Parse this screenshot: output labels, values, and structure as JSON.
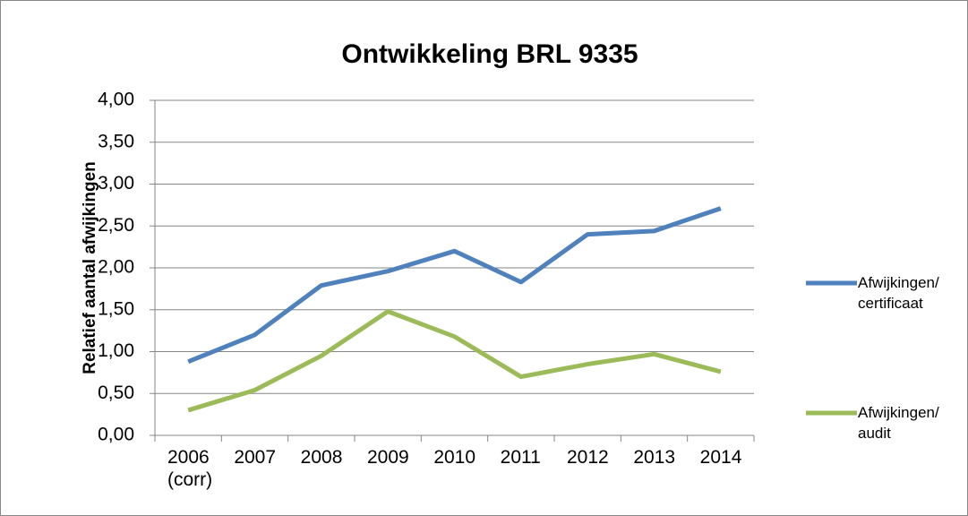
{
  "chart_data": {
    "type": "line",
    "title": "Ontwikkeling BRL 9335",
    "y_label": "Relatief aantal afwijkingen",
    "categories": [
      "2006 (corr)",
      "2007",
      "2008",
      "2009",
      "2010",
      "2011",
      "2012",
      "2013",
      "2014"
    ],
    "series": [
      {
        "name": "Afwijkingen/ certificaat",
        "color": "#4f81bd",
        "values": [
          0.88,
          1.2,
          1.79,
          1.96,
          2.2,
          1.83,
          2.4,
          2.44,
          2.71
        ]
      },
      {
        "name": "Afwijkingen/ audit",
        "color": "#9bbb59",
        "values": [
          0.3,
          0.54,
          0.95,
          1.48,
          1.18,
          0.7,
          0.85,
          0.97,
          0.76
        ]
      }
    ],
    "ylim": [
      0,
      4
    ],
    "yticks": [
      {
        "value": 0,
        "label": "0,00"
      },
      {
        "value": 0.5,
        "label": "0,50"
      },
      {
        "value": 1,
        "label": "1,00"
      },
      {
        "value": 1.5,
        "label": "1,50"
      },
      {
        "value": 2,
        "label": "2,00"
      },
      {
        "value": 2.5,
        "label": "2,50"
      },
      {
        "value": 3,
        "label": "3,00"
      },
      {
        "value": 3.5,
        "label": "3,50"
      },
      {
        "value": 4,
        "label": "4,00"
      }
    ],
    "grid": true,
    "legend": "right"
  }
}
